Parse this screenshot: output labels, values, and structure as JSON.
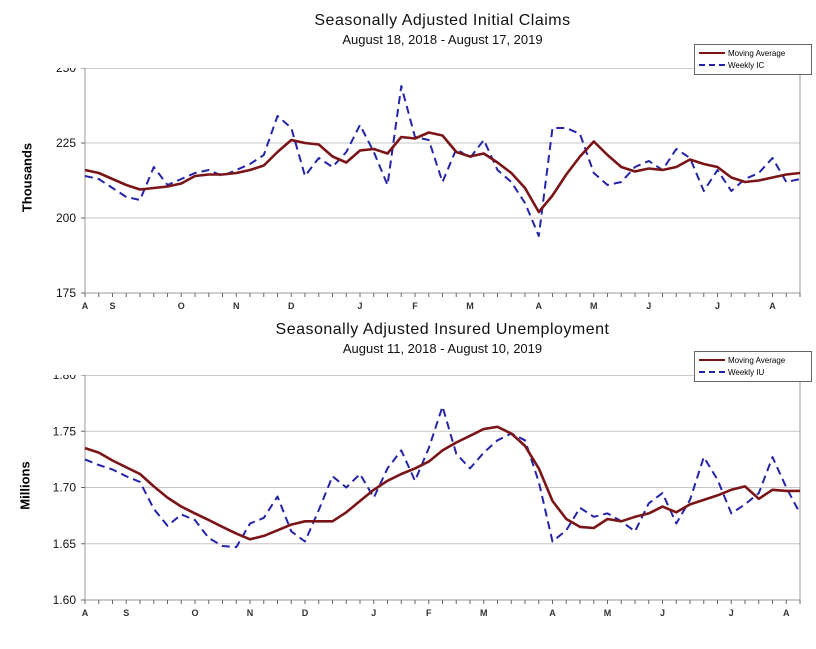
{
  "colors": {
    "moving_average": "#7a1416",
    "weekly": "#2424aa",
    "gridline": "#c6c6c6",
    "frame": "#999999",
    "tick": "#666666",
    "month_label": "#333333",
    "tick_label": "#111111"
  },
  "chart_data": [
    {
      "type": "line",
      "title": "Seasonally Adjusted Initial Claims",
      "subtitle": "August 18, 2018 - August 17, 2019",
      "ylabel": "Thousands",
      "ylim": [
        175,
        250
      ],
      "yticks": [
        250,
        225,
        200,
        175
      ],
      "ytick_labels": [
        "250",
        "225",
        "200",
        "175"
      ],
      "gridlines": [
        225,
        200
      ],
      "legend_position": "top-right",
      "n_weeks": 53,
      "month_tick_labels": [
        {
          "t": "A",
          "i": 0
        },
        {
          "t": "S",
          "i": 2
        },
        {
          "t": "O",
          "i": 7
        },
        {
          "t": "N",
          "i": 11
        },
        {
          "t": "D",
          "i": 15
        },
        {
          "t": "J",
          "i": 20
        },
        {
          "t": "F",
          "i": 24
        },
        {
          "t": "M",
          "i": 28
        },
        {
          "t": "A",
          "i": 33
        },
        {
          "t": "M",
          "i": 37
        },
        {
          "t": "J",
          "i": 41
        },
        {
          "t": "J",
          "i": 46
        },
        {
          "t": "A",
          "i": 50
        }
      ],
      "series": [
        {
          "name": "Moving Average",
          "style": "solid",
          "values": [
            216,
            215,
            213,
            211,
            209.5,
            210,
            210.5,
            211.5,
            214,
            214.5,
            214.5,
            215,
            216,
            217.5,
            222,
            226,
            225,
            224.5,
            220.5,
            218.5,
            222.5,
            223,
            221.5,
            227,
            226.5,
            228.5,
            227.5,
            222,
            220.5,
            221.5,
            218.5,
            215,
            210,
            202,
            207.5,
            214.5,
            220.5,
            225.5,
            221,
            217,
            215.5,
            216.5,
            216,
            217,
            219.5,
            218,
            217,
            213.5,
            212,
            212.5,
            213.5,
            214.5,
            215
          ]
        },
        {
          "name": "Weekly IC",
          "style": "dashed",
          "values": [
            214,
            213,
            210,
            207,
            206,
            217,
            211,
            213,
            215,
            216,
            214,
            216,
            218,
            221,
            234,
            230,
            214,
            220,
            217,
            222,
            231,
            222,
            211,
            244,
            227,
            226,
            212,
            223,
            220,
            226,
            216,
            212,
            205,
            194,
            230,
            230,
            228,
            215,
            211,
            212,
            217,
            219,
            216,
            223,
            220,
            209,
            216,
            209,
            213,
            215,
            220,
            212,
            213
          ]
        }
      ]
    },
    {
      "type": "line",
      "title": "Seasonally Adjusted Insured Unemployment",
      "subtitle": "August 11, 2018 - August 10, 2019",
      "ylabel": "Millions",
      "ylim": [
        1.6,
        1.8
      ],
      "yticks": [
        1.8,
        1.75,
        1.7,
        1.65,
        1.6
      ],
      "ytick_labels": [
        "1.80",
        "1.75",
        "1.70",
        "1.65",
        "1.60"
      ],
      "gridlines": [
        1.75,
        1.7,
        1.65
      ],
      "legend_position": "top-right",
      "n_weeks": 53,
      "month_tick_labels": [
        {
          "t": "A",
          "i": 0
        },
        {
          "t": "S",
          "i": 3
        },
        {
          "t": "O",
          "i": 8
        },
        {
          "t": "N",
          "i": 12
        },
        {
          "t": "D",
          "i": 16
        },
        {
          "t": "J",
          "i": 21
        },
        {
          "t": "F",
          "i": 25
        },
        {
          "t": "M",
          "i": 29
        },
        {
          "t": "A",
          "i": 34
        },
        {
          "t": "M",
          "i": 38
        },
        {
          "t": "J",
          "i": 42
        },
        {
          "t": "J",
          "i": 47
        },
        {
          "t": "A",
          "i": 51
        }
      ],
      "series": [
        {
          "name": "Moving Average",
          "style": "solid",
          "values": [
            1.735,
            1.731,
            1.724,
            1.718,
            1.712,
            1.701,
            1.691,
            1.683,
            1.677,
            1.671,
            1.665,
            1.659,
            1.654,
            1.657,
            1.662,
            1.667,
            1.67,
            1.67,
            1.67,
            1.678,
            1.688,
            1.698,
            1.706,
            1.712,
            1.717,
            1.723,
            1.733,
            1.74,
            1.746,
            1.752,
            1.754,
            1.748,
            1.737,
            1.717,
            1.688,
            1.672,
            1.665,
            1.664,
            1.672,
            1.67,
            1.674,
            1.677,
            1.683,
            1.678,
            1.685,
            1.689,
            1.693,
            1.698,
            1.701,
            1.69,
            1.698,
            1.697,
            1.697
          ]
        },
        {
          "name": "Weekly IU",
          "style": "dashed",
          "values": [
            1.725,
            1.72,
            1.716,
            1.71,
            1.705,
            1.681,
            1.666,
            1.676,
            1.671,
            1.655,
            1.648,
            1.647,
            1.668,
            1.673,
            1.692,
            1.661,
            1.652,
            1.68,
            1.71,
            1.7,
            1.712,
            1.691,
            1.717,
            1.733,
            1.706,
            1.735,
            1.772,
            1.73,
            1.717,
            1.731,
            1.742,
            1.748,
            1.742,
            1.705,
            1.652,
            1.662,
            1.682,
            1.674,
            1.677,
            1.67,
            1.661,
            1.686,
            1.695,
            1.668,
            1.689,
            1.727,
            1.707,
            1.677,
            1.685,
            1.695,
            1.727,
            1.7,
            1.677
          ]
        }
      ]
    }
  ]
}
